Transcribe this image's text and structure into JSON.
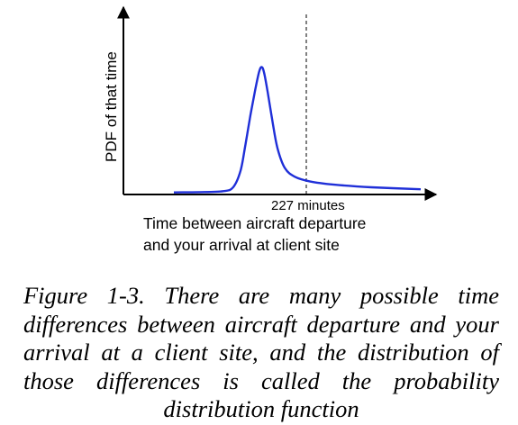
{
  "chart_data": {
    "type": "line",
    "ylabel": "PDF of that time",
    "xlabel_lines": [
      "Time between aircraft departure",
      "and your arrival at client site"
    ],
    "marker": {
      "label": "227 minutes",
      "style": "dashed vertical line"
    },
    "series": [
      {
        "color": "#1f2fd8",
        "shape": [
          [
            0.0,
            0.016
          ],
          [
            0.1,
            0.018
          ],
          [
            0.2,
            0.025
          ],
          [
            0.24,
            0.055
          ],
          [
            0.27,
            0.18
          ],
          [
            0.29,
            0.38
          ],
          [
            0.31,
            0.6
          ],
          [
            0.33,
            0.8
          ],
          [
            0.345,
            0.93
          ],
          [
            0.355,
            0.97
          ],
          [
            0.365,
            0.93
          ],
          [
            0.38,
            0.78
          ],
          [
            0.4,
            0.55
          ],
          [
            0.42,
            0.35
          ],
          [
            0.45,
            0.2
          ],
          [
            0.49,
            0.135
          ],
          [
            0.55,
            0.1
          ],
          [
            0.65,
            0.075
          ],
          [
            0.8,
            0.055
          ],
          [
            1.0,
            0.04
          ]
        ]
      }
    ],
    "axes": {
      "ticks": "none",
      "grid": false
    }
  },
  "caption": "Figure 1-3. There are many possible time differences between aircraft departure and your arrival at a client site, and the distribution of those differences is called the probability distribution function"
}
